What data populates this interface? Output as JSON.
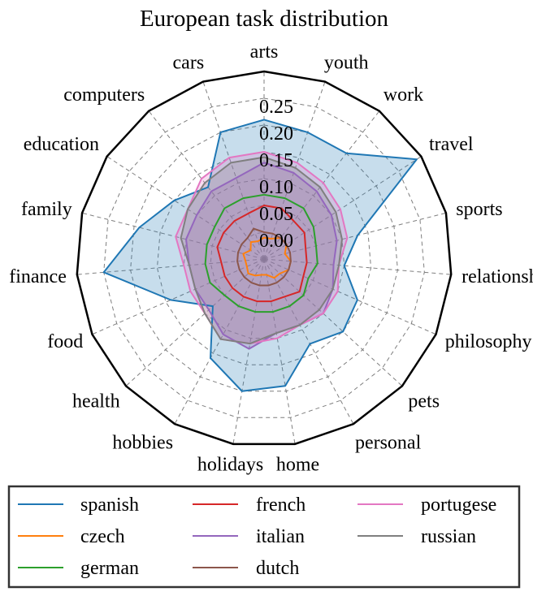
{
  "chart_data": {
    "type": "radar",
    "title": "European task distribution",
    "categories": [
      "arts",
      "youth",
      "work",
      "travel",
      "sports",
      "relationships",
      "philosophy",
      "pets",
      "personal",
      "home",
      "holidays",
      "hobbies",
      "health",
      "food",
      "finance",
      "family",
      "education",
      "computers",
      "cars"
    ],
    "radial_ticks": [
      "0.00",
      "0.05",
      "0.10",
      "0.15",
      "0.20",
      "0.25"
    ],
    "rlim": [
      -0.05,
      0.3
    ],
    "grid": true,
    "legend_position": "bottom",
    "series": [
      {
        "name": "spanish",
        "color": "#1f77b4",
        "fill": true,
        "values": [
          0.21,
          0.2,
          0.2,
          0.29,
          0.13,
          0.1,
          0.14,
          0.15,
          0.13,
          0.19,
          0.2,
          0.16,
          0.08,
          0.14,
          0.25,
          0.19,
          0.15,
          0.12,
          0.2
        ]
      },
      {
        "name": "czech",
        "color": "#ff7f0e",
        "fill": false,
        "values": [
          -0.01,
          -0.01,
          0.0,
          0.0,
          -0.01,
          0.0,
          0.0,
          -0.01,
          -0.01,
          -0.02,
          -0.02,
          -0.015,
          -0.01,
          -0.015,
          -0.015,
          -0.01,
          -0.02,
          -0.01,
          -0.015
        ]
      },
      {
        "name": "german",
        "color": "#2ca02c",
        "fill": false,
        "values": [
          0.07,
          0.07,
          0.07,
          0.06,
          0.05,
          0.05,
          0.04,
          0.05,
          0.05,
          0.05,
          0.05,
          0.05,
          0.05,
          0.06,
          0.06,
          0.06,
          0.06,
          0.07,
          0.07
        ]
      },
      {
        "name": "french",
        "color": "#d62728",
        "fill": false,
        "values": [
          0.05,
          0.05,
          0.04,
          0.04,
          0.03,
          0.03,
          0.03,
          0.04,
          0.03,
          0.03,
          0.03,
          0.03,
          0.03,
          0.03,
          0.03,
          0.04,
          0.04,
          0.04,
          0.04
        ]
      },
      {
        "name": "italian",
        "color": "#9467bd",
        "fill": true,
        "values": [
          0.13,
          0.12,
          0.11,
          0.1,
          0.09,
          0.08,
          0.09,
          0.1,
          0.09,
          0.09,
          0.12,
          0.11,
          0.09,
          0.09,
          0.09,
          0.1,
          0.1,
          0.11,
          0.11
        ]
      },
      {
        "name": "dutch",
        "color": "#8c564b",
        "fill": false,
        "values": [
          0.0,
          0.0,
          0.0,
          0.0,
          0.0,
          0.0,
          0.0,
          0.0,
          0.0,
          0.0,
          0.0,
          0.0,
          0.0,
          0.0,
          0.0,
          0.0,
          0.0,
          0.0,
          0.01
        ]
      },
      {
        "name": "portugese",
        "color": "#e377c2",
        "fill": true,
        "values": [
          0.15,
          0.14,
          0.13,
          0.12,
          0.11,
          0.09,
          0.1,
          0.1,
          0.09,
          0.1,
          0.11,
          0.12,
          0.1,
          0.1,
          0.1,
          0.12,
          0.12,
          0.14,
          0.15
        ]
      },
      {
        "name": "russian",
        "color": "#7f7f7f",
        "fill": true,
        "values": [
          0.14,
          0.13,
          0.12,
          0.11,
          0.1,
          0.09,
          0.09,
          0.09,
          0.09,
          0.09,
          0.11,
          0.12,
          0.1,
          0.09,
          0.09,
          0.11,
          0.12,
          0.13,
          0.14
        ]
      }
    ]
  }
}
